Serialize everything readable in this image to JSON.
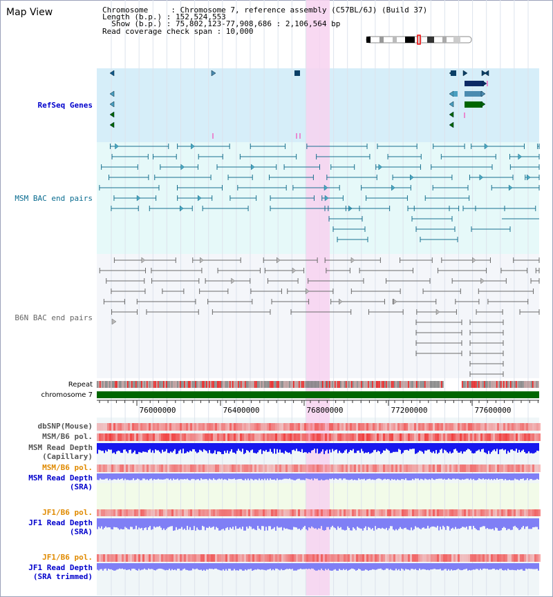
{
  "title": "Map View",
  "info": {
    "line1": "Chromosome     : Chromosome 7, reference assembly (C57BL/6J) (Build 37)",
    "line2": "Length (b.p.) : 152,524,553",
    "line3": "  Show (b.p.) : 75,802,123-77,908,686 : 2,106,564 bp",
    "line4": "Read coverage check span : 10,000"
  },
  "tracks": {
    "refseq": "RefSeq Genes",
    "msm_bac": "MSM BAC end pairs",
    "b6n_bac": "B6N BAC end pairs",
    "repeat": "Repeat",
    "chromosome": "chromosome 7",
    "dbsnp": "dbSNP(Mouse)",
    "msm_b6_pol": "MSM/B6 pol.",
    "msm_depth_cap_1": "MSM Read Depth",
    "msm_depth_cap_2": "(Capillary)",
    "msm_b6_pol_sra": "MSM/B6 pol.",
    "msm_depth_sra_1": "MSM Read Depth",
    "msm_depth_sra_2": "(SRA)",
    "jf1_b6_pol": "JF1/B6 pol.",
    "jf1_depth_sra_1": "JF1 Read Depth",
    "jf1_depth_sra_2": "(SRA)",
    "jf1_b6_pol_trim": "JF1/B6 pol.",
    "jf1_depth_trim_1": "JF1 Read Depth",
    "jf1_depth_trim_2": "(SRA trimmed)"
  },
  "axis_ticks": [
    "76000000",
    "76400000",
    "76800000",
    "77200000",
    "77600000"
  ],
  "colors": {
    "refseq_bg": "#d6eef9",
    "msm_bg": "#e6f9f9",
    "b6n_bg": "#f4f6fa",
    "highlight": "#f7d2f0",
    "chromosome": "#006600",
    "snp": "#f07070",
    "depth_dark": "#1818ee",
    "depth_light": "#7f7ff5"
  }
}
